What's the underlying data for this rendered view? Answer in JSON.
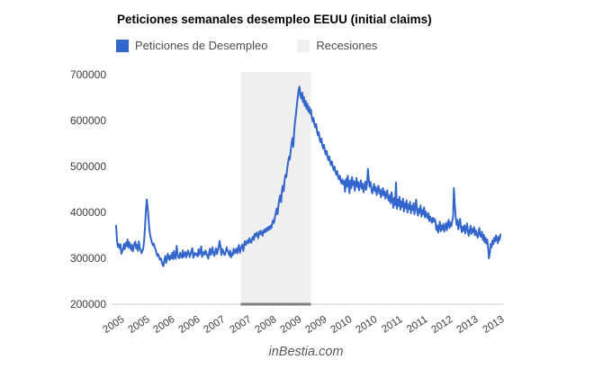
{
  "watermark": "inBestia.com",
  "chart_data": {
    "type": "line",
    "title": "Peticiones semanales desempleo EEUU (initial claims)",
    "frequency": "weekly",
    "x_start_year": 2005,
    "x_tick_labels": [
      "2005",
      "2005",
      "2006",
      "2006",
      "2007",
      "2007",
      "2008",
      "2009",
      "2009",
      "2010",
      "2010",
      "2011",
      "2011",
      "2012",
      "2013",
      "2013"
    ],
    "y_axis": {
      "min": 200000,
      "max": 700000,
      "ticks": [
        700000,
        600000,
        500000,
        400000,
        300000,
        200000
      ]
    },
    "grid": "off",
    "legend_position": "top",
    "colors": {
      "axis_baseline": "#e4e4e4",
      "recession_underline": "#808080"
    },
    "recessions": {
      "label": "Recesiones",
      "color": "#efefef",
      "start_index": 142,
      "end_index": 222
    },
    "series": [
      {
        "name": "Peticiones de Desempleo",
        "color": "#3366cc",
        "values": [
          371000,
          340000,
          325000,
          331000,
          322000,
          330000,
          310000,
          315000,
          321000,
          331000,
          320000,
          334000,
          327000,
          341000,
          323000,
          335000,
          326000,
          319000,
          330000,
          315000,
          324000,
          333000,
          336000,
          321000,
          329000,
          316000,
          337000,
          322000,
          318000,
          311000,
          316000,
          322000,
          340000,
          371000,
          403000,
          428000,
          411000,
          385000,
          362000,
          348000,
          341000,
          333000,
          328000,
          332000,
          324000,
          319000,
          312000,
          305000,
          309000,
          302000,
          297000,
          300000,
          293000,
          285000,
          283000,
          296000,
          305000,
          290000,
          298000,
          310000,
          301000,
          296000,
          306000,
          300000,
          312000,
          298000,
          316000,
          302000,
          299000,
          327000,
          309000,
          303000,
          300000,
          312000,
          307000,
          301000,
          317000,
          303000,
          308000,
          314000,
          302000,
          309000,
          317000,
          311000,
          303000,
          310000,
          317000,
          322000,
          301000,
          307000,
          312000,
          307000,
          310000,
          304000,
          320000,
          308000,
          315000,
          326000,
          303000,
          309000,
          314000,
          308000,
          317000,
          311000,
          305000,
          299000,
          312000,
          321000,
          307000,
          316000,
          324000,
          310000,
          305000,
          315000,
          322000,
          309000,
          317000,
          325000,
          338000,
          326000,
          307000,
          320000,
          316000,
          309000,
          307000,
          315000,
          324000,
          317000,
          312000,
          306000,
          317000,
          302000,
          311000,
          307000,
          321000,
          311000,
          317000,
          321000,
          310000,
          322000,
          329000,
          312000,
          319000,
          326000,
          330000,
          316000,
          329000,
          338000,
          329000,
          335000,
          339000,
          333000,
          344000,
          337000,
          334000,
          342000,
          347000,
          340000,
          353000,
          348000,
          356000,
          351000,
          344000,
          358000,
          352000,
          360000,
          355000,
          349000,
          361000,
          356000,
          364000,
          358000,
          366000,
          361000,
          369000,
          363000,
          371000,
          366000,
          376000,
          383000,
          377000,
          390000,
          398000,
          408000,
          396000,
          415000,
          428000,
          437000,
          422000,
          448000,
          458000,
          446000,
          470000,
          482000,
          477000,
          495000,
          509000,
          521000,
          515000,
          534000,
          551000,
          562000,
          543000,
          577000,
          599000,
          614000,
          633000,
          651000,
          666000,
          674000,
          655000,
          648000,
          661000,
          640000,
          652000,
          632000,
          643000,
          626000,
          637000,
          620000,
          630000,
          615000,
          624000,
          608000,
          598000,
          606000,
          592000,
          585000,
          593000,
          577000,
          568000,
          575000,
          560000,
          553000,
          561000,
          546000,
          539000,
          547000,
          533000,
          526000,
          534000,
          521000,
          514000,
          522000,
          509000,
          503000,
          511000,
          498000,
          492000,
          500000,
          488000,
          482000,
          490000,
          478000,
          472000,
          480000,
          468000,
          463000,
          472000,
          461000,
          468000,
          445000,
          473000,
          456000,
          480000,
          462000,
          442000,
          470000,
          453000,
          477000,
          459000,
          468000,
          447000,
          462000,
          475000,
          455000,
          466000,
          448000,
          459000,
          470000,
          452000,
          463000,
          444000,
          456000,
          467000,
          449000,
          461000,
          495000,
          472000,
          456000,
          466000,
          450000,
          441000,
          452000,
          462000,
          446000,
          455000,
          438000,
          449000,
          458000,
          441000,
          450000,
          433000,
          444000,
          453000,
          437000,
          446000,
          430000,
          439000,
          448000,
          431000,
          425000,
          438000,
          420000,
          444000,
          426000,
          410000,
          432000,
          416000,
          465000,
          408000,
          428000,
          414000,
          434000,
          406000,
          424000,
          412000,
          430000,
          402000,
          420000,
          409000,
          426000,
          400000,
          417000,
          407000,
          423000,
          398000,
          414000,
          405000,
          420000,
          396000,
          411000,
          428000,
          403000,
          393000,
          408000,
          399000,
          415000,
          391000,
          405000,
          396000,
          411000,
          389000,
          402000,
          394000,
          387000,
          398000,
          381000,
          391000,
          384000,
          377000,
          388000,
          380000,
          386000,
          379000,
          362000,
          372000,
          356000,
          367000,
          380000,
          359000,
          371000,
          363000,
          375000,
          358000,
          369000,
          377000,
          361000,
          373000,
          384000,
          366000,
          378000,
          370000,
          381000,
          390000,
          453000,
          417000,
          391000,
          373000,
          384000,
          363000,
          375000,
          386000,
          368000,
          357000,
          369000,
          360000,
          372000,
          354000,
          365000,
          376000,
          358000,
          349000,
          361000,
          371000,
          353000,
          364000,
          357000,
          368000,
          350000,
          361000,
          353000,
          345000,
          356000,
          366000,
          348000,
          347000,
          358000,
          340000,
          351000,
          335000,
          345000,
          332000,
          341000,
          322000,
          300000,
          312000,
          332000,
          324000,
          339000,
          331000,
          345000,
          337000,
          350000,
          342000,
          333000,
          347000,
          340000,
          352000
        ]
      }
    ]
  }
}
